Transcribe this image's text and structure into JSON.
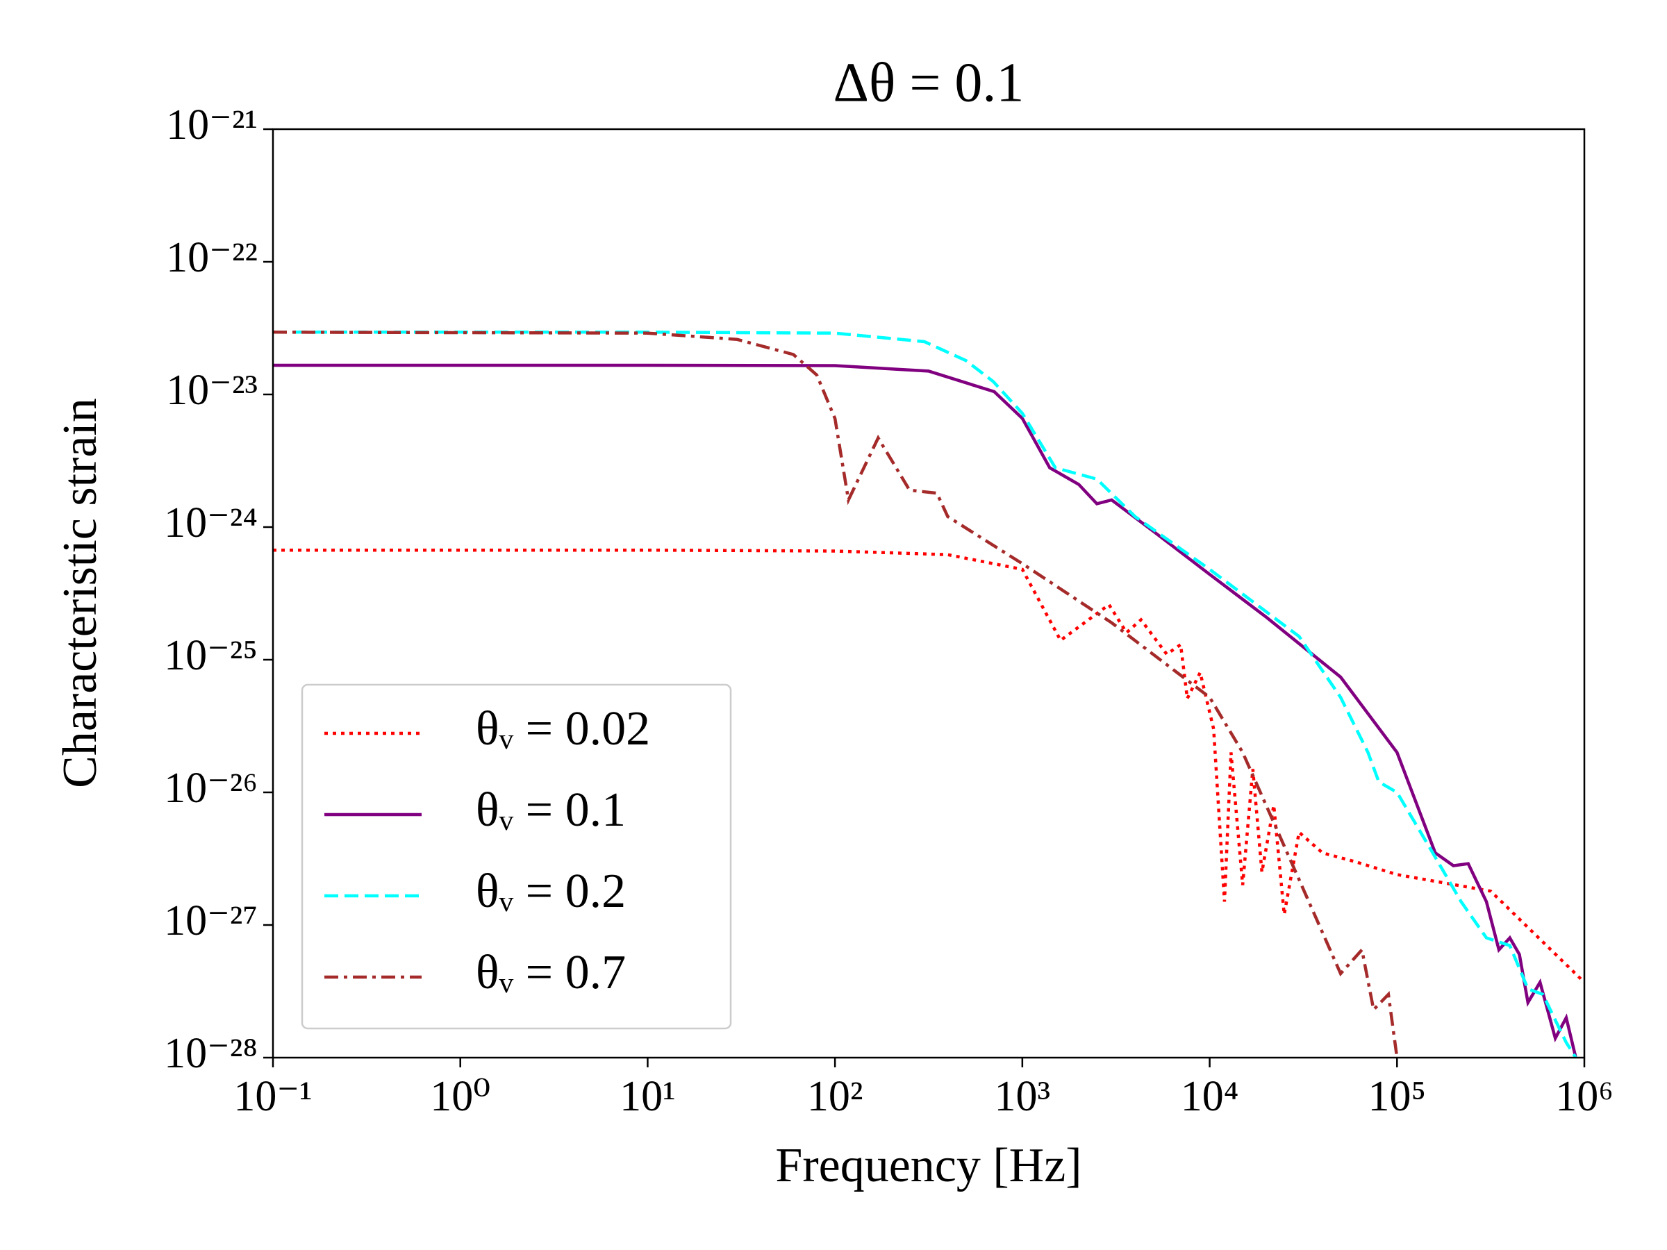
{
  "chart_data": {
    "type": "line",
    "title": "Δθ = 0.1",
    "xlabel": "Frequency [Hz]",
    "ylabel": "Characteristic strain",
    "xscale": "log",
    "yscale": "log",
    "xlim": [
      0.1,
      1000000
    ],
    "ylim": [
      1e-28,
      1e-21
    ],
    "xticks": [
      {
        "value": 0.1,
        "label": "10⁻¹"
      },
      {
        "value": 1,
        "label": "10⁰"
      },
      {
        "value": 10,
        "label": "10¹"
      },
      {
        "value": 100,
        "label": "10²"
      },
      {
        "value": 1000,
        "label": "10³"
      },
      {
        "value": 10000,
        "label": "10⁴"
      },
      {
        "value": 100000,
        "label": "10⁵"
      },
      {
        "value": 1000000,
        "label": "10⁶"
      }
    ],
    "yticks": [
      {
        "value": 1e-28,
        "label": "10⁻²⁸"
      },
      {
        "value": 1e-27,
        "label": "10⁻²⁷"
      },
      {
        "value": 1e-26,
        "label": "10⁻²⁶"
      },
      {
        "value": 1e-25,
        "label": "10⁻²⁵"
      },
      {
        "value": 1e-24,
        "label": "10⁻²⁴"
      },
      {
        "value": 1e-23,
        "label": "10⁻²³"
      },
      {
        "value": 1e-22,
        "label": "10⁻²²"
      },
      {
        "value": 1e-21,
        "label": "10⁻²¹"
      }
    ],
    "legend": "lower left",
    "series": [
      {
        "name": "θᵥ = 0.02",
        "color": "#ff0000",
        "linestyle": "dotted",
        "x": [
          0.1,
          10,
          100,
          400,
          1000,
          1600,
          2900,
          3600,
          4300,
          5900,
          7000,
          7600,
          8900,
          10500,
          12000,
          13000,
          15000,
          17000,
          19000,
          22000,
          25000,
          30000,
          40000,
          60000,
          100000,
          316000,
          1000000
        ],
        "values": [
          6.7e-25,
          6.7e-25,
          6.6e-25,
          6.2e-25,
          4.8e-25,
          1.4e-25,
          2.6e-25,
          1.6e-25,
          2e-25,
          1.1e-25,
          1.3e-25,
          5.1e-26,
          8e-26,
          3e-26,
          1.5e-27,
          2e-26,
          2e-27,
          1.5e-26,
          2.5e-27,
          8e-27,
          1.2e-27,
          5e-27,
          3.5e-27,
          3e-27,
          2.4e-27,
          1.8e-27,
          3.7e-28
        ]
      },
      {
        "name": "θᵥ = 0.1",
        "color": "#800080",
        "linestyle": "solid",
        "x": [
          0.1,
          10,
          100,
          316,
          708,
          1000,
          1400,
          2000,
          2500,
          3000,
          5000,
          10000,
          20000,
          50000,
          100000,
          160000,
          200000,
          240000,
          300000,
          350000,
          400000,
          450000,
          500000,
          580000,
          700000,
          800000,
          900000
        ],
        "values": [
          1.66e-23,
          1.66e-23,
          1.65e-23,
          1.5e-23,
          1.05e-23,
          6.6e-24,
          2.8e-24,
          2.1e-24,
          1.5e-24,
          1.6e-24,
          9.3e-25,
          4.4e-25,
          2.1e-25,
          7.4e-26,
          2e-26,
          3.5e-27,
          2.8e-27,
          2.9e-27,
          1.5e-27,
          6.5e-28,
          8e-28,
          6e-28,
          2.6e-28,
          3.7e-28,
          1.4e-28,
          2e-28,
          1e-28
        ]
      },
      {
        "name": "θᵥ = 0.2",
        "color": "#00ffff",
        "linestyle": "dashed",
        "x": [
          0.1,
          10,
          100,
          300,
          500,
          700,
          1000,
          1500,
          2500,
          4000,
          10000,
          30000,
          50000,
          70000,
          80000,
          100000,
          150000,
          220000,
          300000,
          400000,
          500000,
          600000,
          800000,
          900000
        ],
        "values": [
          2.95e-23,
          2.95e-23,
          2.9e-23,
          2.5e-23,
          1.8e-23,
          1.25e-23,
          7.2e-24,
          2.8e-24,
          2.3e-24,
          1.2e-24,
          4.8e-25,
          1.5e-25,
          5.2e-26,
          2e-26,
          1.2e-26,
          1e-26,
          3.8e-27,
          1.5e-27,
          8e-28,
          7e-28,
          3.3e-28,
          3e-28,
          1.3e-28,
          1e-28
        ]
      },
      {
        "name": "θᵥ = 0.7",
        "color": "#a52a2a",
        "linestyle": "dashdot",
        "x": [
          0.1,
          10,
          30,
          60,
          80,
          100,
          118,
          170,
          250,
          350,
          400,
          1000,
          3000,
          10000,
          15000,
          20000,
          30000,
          50000,
          65000,
          75000,
          90000,
          100000
        ],
        "values": [
          2.95e-23,
          2.9e-23,
          2.6e-23,
          2e-23,
          1.4e-23,
          6.6e-24,
          1.6e-24,
          4.7e-24,
          1.9e-24,
          1.8e-24,
          1.2e-24,
          5.3e-25,
          1.9e-25,
          5.2e-26,
          2e-26,
          8e-27,
          2.2e-27,
          4.3e-28,
          6.5e-28,
          2.3e-28,
          3e-28,
          1e-28
        ]
      }
    ]
  }
}
